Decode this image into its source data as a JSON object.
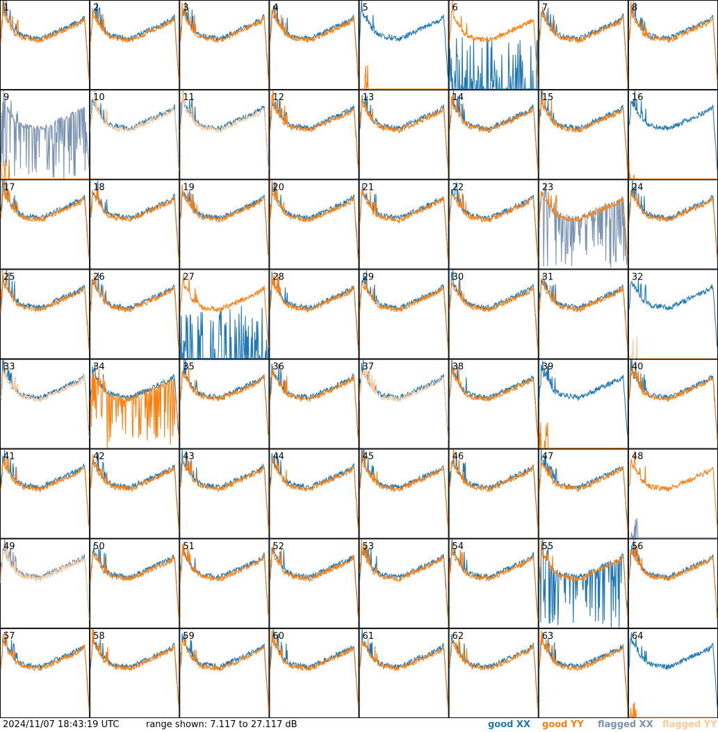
{
  "chart_data": {
    "type": "line",
    "title": "",
    "xlabel": "",
    "ylabel": "",
    "ylim": [
      7.117,
      27.117
    ],
    "grid": {
      "rows": 8,
      "cols": 8
    },
    "panels": [
      "1",
      "2",
      "3",
      "4",
      "5",
      "6",
      "7",
      "8",
      "9",
      "10",
      "11",
      "12",
      "13",
      "14",
      "15",
      "16",
      "17",
      "18",
      "19",
      "20",
      "21",
      "22",
      "23",
      "24",
      "25",
      "26",
      "27",
      "28",
      "29",
      "30",
      "31",
      "32",
      "33",
      "34",
      "35",
      "36",
      "37",
      "38",
      "39",
      "40",
      "41",
      "42",
      "43",
      "44",
      "45",
      "46",
      "47",
      "48",
      "49",
      "50",
      "51",
      "52",
      "53",
      "54",
      "55",
      "56",
      "57",
      "58",
      "59",
      "60",
      "61",
      "62",
      "63",
      "64"
    ],
    "series": [
      {
        "name": "good XX",
        "color": "#1f77b4"
      },
      {
        "name": "good YY",
        "color": "#ff7f0e"
      },
      {
        "name": "flagged XX",
        "color": "#7a93b2"
      },
      {
        "name": "flagged YY",
        "color": "#fdc89a"
      }
    ],
    "flagged": {
      "xx": [
        "9",
        "23",
        "48",
        "49"
      ],
      "yy": [
        "10",
        "11",
        "32",
        "33",
        "37",
        "49"
      ]
    },
    "anomalies": {
      "low_yy": [
        "5",
        "9",
        "16",
        "32",
        "39",
        "64"
      ],
      "low_xx": [
        "6",
        "27",
        "48"
      ],
      "spiky_xx": [
        "6",
        "9",
        "23",
        "27",
        "55"
      ],
      "spiky_yy": [
        "34"
      ]
    }
  },
  "footer": {
    "timestamp": "2024/11/07 18:43:19 UTC",
    "range": "range shown: 7.117 to 27.117 dB",
    "legend": [
      "good XX",
      "good YY",
      "flagged XX",
      "flagged YY"
    ]
  }
}
